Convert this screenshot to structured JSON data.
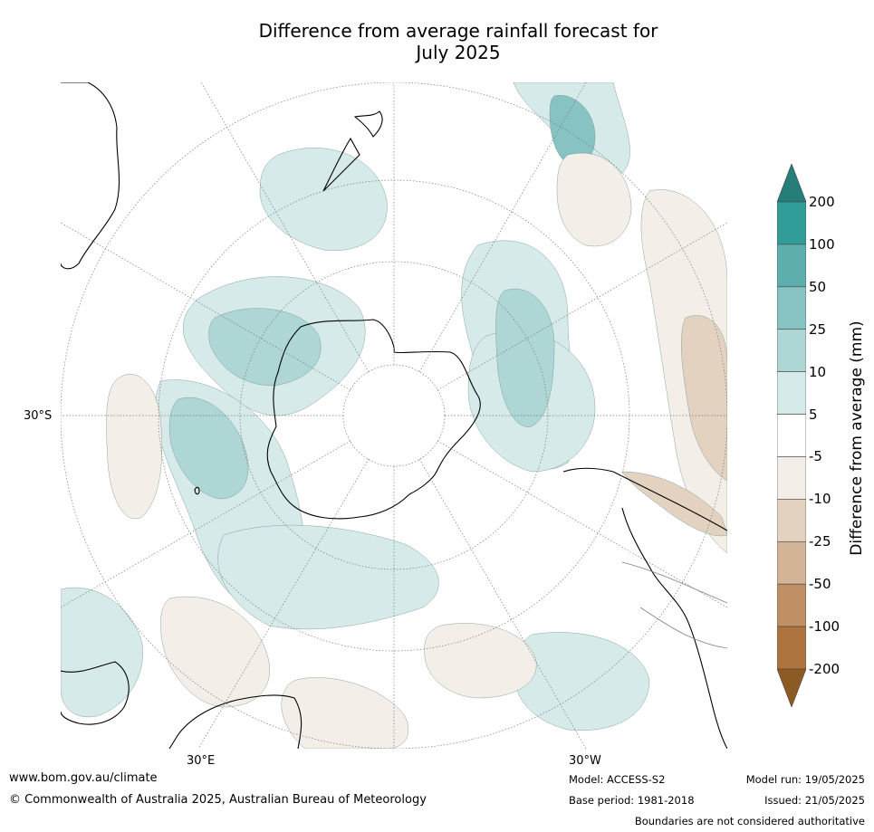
{
  "title_line1": "Difference from average rainfall forecast for",
  "title_line2": "July 2025",
  "map": {
    "lon_labels": {
      "east": "30°E",
      "west": "30°W"
    },
    "lat_label": "30°S",
    "colors": {
      "coast": "#000000",
      "border": "#808080",
      "grid": "#7a7a7a"
    }
  },
  "legend": {
    "title": "Difference from average (mm)",
    "ticks": [
      "200",
      "100",
      "50",
      "25",
      "10",
      "5",
      "-5",
      "-10",
      "-25",
      "-50",
      "-100",
      "-200"
    ],
    "bins": [
      {
        "range": ">200",
        "color": "#267e7b"
      },
      {
        "range": "100 to 200",
        "color": "#329c99"
      },
      {
        "range": "50 to 100",
        "color": "#5daeac"
      },
      {
        "range": "25 to 50",
        "color": "#86c3c2"
      },
      {
        "range": "10 to 25",
        "color": "#aed6d5"
      },
      {
        "range": "5 to 10",
        "color": "#d6eae9"
      },
      {
        "range": "-5 to 5",
        "color": "#ffffff"
      },
      {
        "range": "-10 to -5",
        "color": "#f3eee7"
      },
      {
        "range": "-25 to -10",
        "color": "#e4d2c1"
      },
      {
        "range": "-50 to -25",
        "color": "#d3b496"
      },
      {
        "range": "-100 to -50",
        "color": "#c09065"
      },
      {
        "range": "-200 to -100",
        "color": "#ae743f"
      },
      {
        "range": "<-200",
        "color": "#8e5a24"
      }
    ]
  },
  "footer": {
    "website": "www.bom.gov.au/climate",
    "copyright": "© Commonwealth of Australia 2025, Australian Bureau of Meteorology",
    "model": "Model: ACCESS-S2",
    "base_period": "Base period: 1981-2018",
    "model_run": "Model run: 19/05/2025",
    "issued": "Issued: 21/05/2025",
    "disclaimer": "Boundaries are not considered authoritative"
  }
}
